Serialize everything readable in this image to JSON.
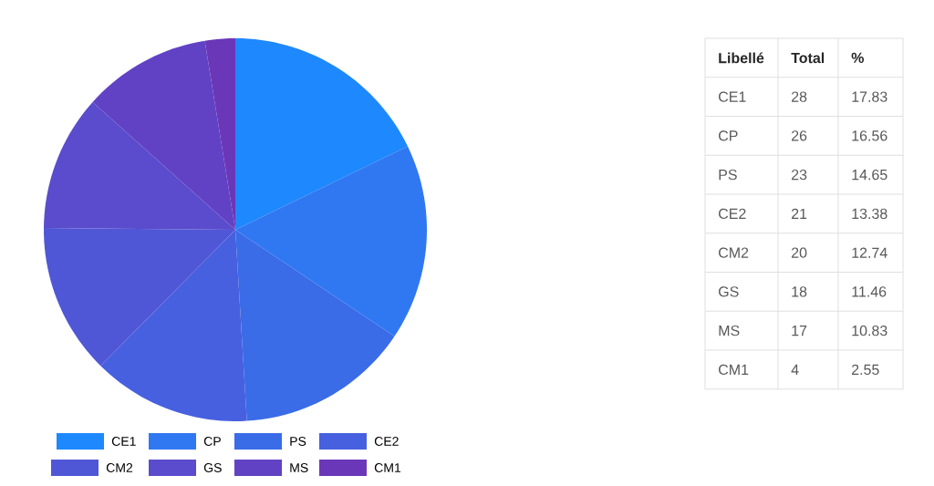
{
  "chart_data": [
    {
      "type": "pie",
      "categories": [
        "CE1",
        "CP",
        "PS",
        "CE2",
        "CM2",
        "GS",
        "MS",
        "CM1"
      ],
      "values": [
        17.83,
        16.56,
        14.65,
        13.38,
        12.74,
        11.46,
        10.83,
        2.55
      ],
      "colors": [
        "#1e88ff",
        "#2f78f2",
        "#3a6ce8",
        "#4760df",
        "#5057d6",
        "#5a4ccc",
        "#6142c4",
        "#6b37b9"
      ],
      "legend": "bottom"
    },
    {
      "type": "other",
      "annotations": [
        "Libellé",
        "Total",
        "%",
        "17.83",
        "16.56",
        "14.65",
        "13.38",
        "12.74",
        "11.46",
        "10.83",
        "2.55"
      ],
      "categories": [
        "CE1",
        "CP",
        "PS",
        "CE2",
        "CM2",
        "GS",
        "MS",
        "CM1"
      ],
      "values": [
        28,
        26,
        23,
        21,
        20,
        18,
        17,
        4
      ],
      "data_labels": true
    }
  ]
}
